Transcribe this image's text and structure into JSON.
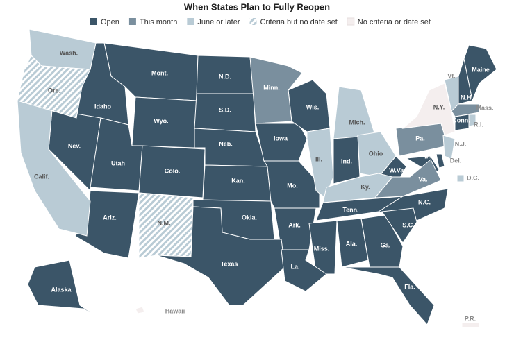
{
  "title": "When States Plan to Fully Reopen",
  "legend": [
    {
      "label": "Open",
      "color": "#3b5568",
      "states": [
        "Mont.",
        "N.D.",
        "Idaho",
        "Wyo.",
        "S.D.",
        "Neb.",
        "Nev.",
        "Utah",
        "Colo.",
        "Kan.",
        "Iowa",
        "Wis.",
        "Mo.",
        "Ind.",
        "W.Va.",
        "Md.",
        "Del.",
        "Okla.",
        "Ark.",
        "Tenn.",
        "N.C.",
        "Ariz.",
        "Texas",
        "Miss.",
        "Ala.",
        "Ga.",
        "S.C.",
        "La.",
        "Fla.",
        "Alaska",
        "Maine",
        "N.H.",
        "Conn."
      ]
    },
    {
      "label": "This month",
      "color": "#7a8f9e",
      "states": [
        "Minn.",
        "Pa.",
        "Va.",
        "Mass."
      ]
    },
    {
      "label": "June or later",
      "color": "#b9cbd5",
      "states": [
        "Wash.",
        "Calif.",
        "Ill.",
        "Mich.",
        "Ohio",
        "Ky.",
        "N.J.",
        "Vt.",
        "R.I.",
        "D.C."
      ]
    },
    {
      "label": "Criteria but no date set",
      "color": "#b9cbd5",
      "hatch": true,
      "states": [
        "Ore.",
        "N.M."
      ]
    },
    {
      "label": "No criteria or date set",
      "color": "#f4eeee",
      "states": [
        "N.Y.",
        "Hawaii",
        "P.R."
      ]
    }
  ]
}
